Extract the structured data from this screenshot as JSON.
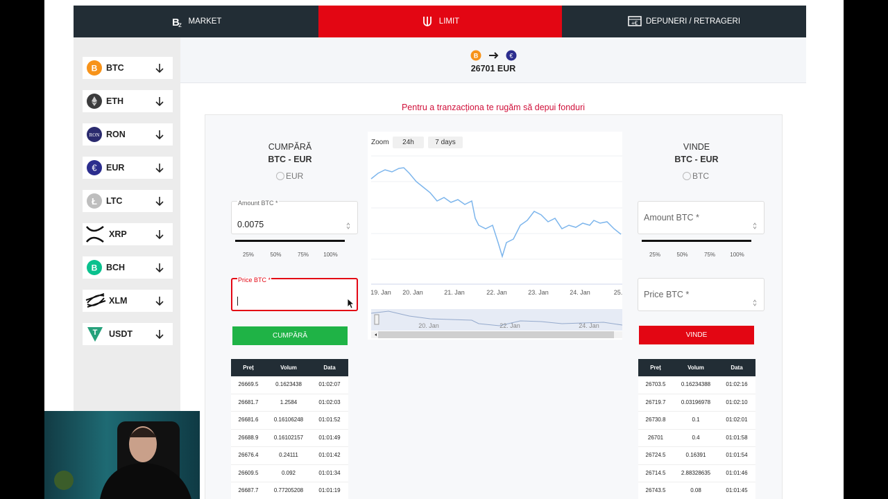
{
  "nav": {
    "tabs": [
      "MARKET",
      "LIMIT",
      "DEPUNERI / RETRAGERI"
    ]
  },
  "sidebar": {
    "coins": [
      "BTC",
      "ETH",
      "RON",
      "EUR",
      "LTC",
      "XRP",
      "BCH",
      "XLM",
      "USDT"
    ]
  },
  "header": {
    "price": "26701 EUR"
  },
  "notice": "Pentru a tranzacționa te rugăm să depui fonduri",
  "buy": {
    "title": "CUMPĂRĂ",
    "pair": "BTC - EUR",
    "currency": "EUR",
    "amount_label": "Amount BTC *",
    "amount_value": "0.0075",
    "percentages": [
      "25%",
      "50%",
      "75%",
      "100%"
    ],
    "price_label": "Price BTC *",
    "button": "CUMPĂRĂ",
    "table": {
      "headers": [
        "Preț",
        "Volum",
        "Data"
      ],
      "rows": [
        [
          "26669.5",
          "0.1623438",
          "01:02:07"
        ],
        [
          "26681.7",
          "1.2584",
          "01:02:03"
        ],
        [
          "26681.6",
          "0.16106248",
          "01:01:52"
        ],
        [
          "26688.9",
          "0.16102157",
          "01:01:49"
        ],
        [
          "26676.4",
          "0.24111",
          "01:01:42"
        ],
        [
          "26609.5",
          "0.092",
          "01:01:34"
        ],
        [
          "26687.7",
          "0.77205208",
          "01:01:19"
        ]
      ]
    }
  },
  "sell": {
    "title": "VINDE",
    "pair": "BTC - EUR",
    "currency": "BTC",
    "amount_label": "Amount BTC *",
    "percentages": [
      "25%",
      "50%",
      "75%",
      "100%"
    ],
    "price_label": "Price BTC *",
    "button": "VINDE",
    "table": {
      "headers": [
        "Preț",
        "Volum",
        "Data"
      ],
      "rows": [
        [
          "26703.5",
          "0.16234388",
          "01:02:16"
        ],
        [
          "26719.7",
          "0.03196978",
          "01:02:10"
        ],
        [
          "26730.8",
          "0.1",
          "01:02:01"
        ],
        [
          "26701",
          "0.4",
          "01:01:58"
        ],
        [
          "26724.5",
          "0.16391",
          "01:01:54"
        ],
        [
          "26714.5",
          "2.88328635",
          "01:01:46"
        ],
        [
          "26743.5",
          "0.08",
          "01:01:45"
        ]
      ]
    }
  },
  "chart": {
    "zoom_label": "Zoom",
    "zoom_options": [
      "24h",
      "7 days"
    ],
    "x_labels": [
      "19. Jan",
      "20. Jan",
      "21. Jan",
      "22. Jan",
      "23. Jan",
      "24. Jan",
      "25."
    ],
    "navigator_labels": [
      "20. Jan",
      "22. Jan",
      "24. Jan"
    ]
  }
}
